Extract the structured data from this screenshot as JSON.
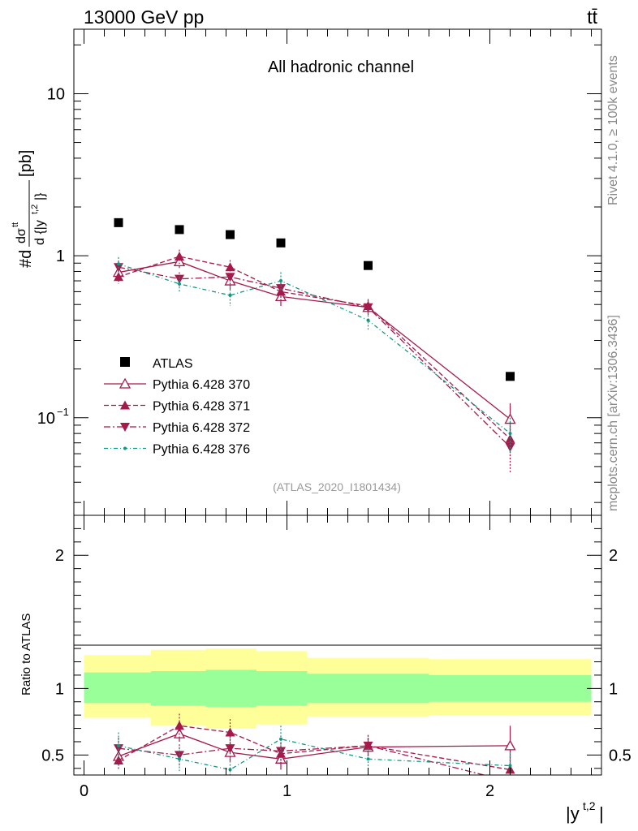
{
  "header": {
    "left": "13000 GeV pp",
    "right": "tt̄"
  },
  "side_text": {
    "rivet": "Rivet 4.1.0, ≥ 100k events",
    "mcplots": "mcplots.cern.ch [arXiv:1306.3436]"
  },
  "colors": {
    "data": "#000000",
    "mc": "#a6194b",
    "teal": "#129686",
    "band_inner": "#99ff99",
    "band_outer": "#ffff99"
  },
  "chart_data": {
    "type": "line",
    "title": "All hadronic channel",
    "watermark": "(ATLAS_2020_I1801434)",
    "xlabel": "|y^{t,2}|",
    "ylabel": "#d dσ^{tt}/d{|y^{t,2}|} [pb]",
    "ylabel_ratio": "Ratio to ATLAS",
    "xlim": [
      -0.05,
      2.55
    ],
    "ylim_main": [
      0.025,
      25
    ],
    "ylim_ratio": [
      0.35,
      2.3
    ],
    "x_ticks": [
      {
        "v": 0,
        "label": "0"
      },
      {
        "v": 1,
        "label": "1"
      },
      {
        "v": 2,
        "label": "2"
      }
    ],
    "y_ticks_main": [
      {
        "v": 0.1,
        "base": "10",
        "exp": "−1"
      },
      {
        "v": 1,
        "base": "1",
        "exp": ""
      },
      {
        "v": 10,
        "base": "10",
        "exp": ""
      }
    ],
    "y_ticks_ratio": [
      {
        "v": 0.5,
        "label": "0.5"
      },
      {
        "v": 1,
        "label": "1"
      },
      {
        "v": 2,
        "label": "2"
      }
    ],
    "bins": [
      [
        0.0,
        0.33
      ],
      [
        0.33,
        0.6
      ],
      [
        0.6,
        0.85
      ],
      [
        0.85,
        1.1
      ],
      [
        1.1,
        1.7
      ],
      [
        1.7,
        2.5
      ]
    ],
    "x": [
      0.17,
      0.47,
      0.72,
      0.97,
      1.4,
      2.1
    ],
    "data": {
      "name": "ATLAS",
      "values": [
        1.6,
        1.45,
        1.35,
        1.2,
        0.87,
        0.18
      ],
      "band_inner": [
        [
          0.89,
          1.12
        ],
        [
          0.87,
          1.13
        ],
        [
          0.86,
          1.14
        ],
        [
          0.87,
          1.13
        ],
        [
          0.89,
          1.11
        ],
        [
          0.9,
          1.1
        ]
      ],
      "band_outer": [
        [
          0.78,
          1.25
        ],
        [
          0.72,
          1.29
        ],
        [
          0.7,
          1.3
        ],
        [
          0.73,
          1.28
        ],
        [
          0.79,
          1.23
        ],
        [
          0.8,
          1.22
        ]
      ]
    },
    "series": [
      {
        "name": "Pythia 6.428 370",
        "marker": "triangle-open",
        "dash": "",
        "color": "#a6194b",
        "values": [
          0.79,
          0.92,
          0.7,
          0.56,
          0.48,
          0.098
        ],
        "errors": [
          0.08,
          0.08,
          0.08,
          0.07,
          0.04,
          0.025
        ],
        "ratio": [
          0.49,
          0.66,
          0.52,
          0.47,
          0.56,
          0.57
        ],
        "ratio_err": [
          0.07,
          0.06,
          0.07,
          0.08,
          0.07,
          0.15
        ]
      },
      {
        "name": "Pythia 6.428 371",
        "marker": "triangle-up",
        "dash": "6,3",
        "color": "#a6194b",
        "values": [
          0.74,
          0.99,
          0.85,
          0.6,
          0.49,
          0.074
        ],
        "errors": [
          0.07,
          0.1,
          0.09,
          0.08,
          0.05,
          0.02
        ],
        "ratio": [
          0.46,
          0.72,
          0.67,
          0.51,
          0.57,
          0.39
        ],
        "ratio_err": [
          0.07,
          0.09,
          0.1,
          0.08,
          0.08,
          0.1
        ]
      },
      {
        "name": "Pythia 6.428 372",
        "marker": "triangle-down",
        "dash": "8,3,2,3",
        "color": "#a6194b",
        "values": [
          0.85,
          0.72,
          0.74,
          0.63,
          0.48,
          0.066
        ],
        "errors": [
          0.08,
          0.07,
          0.08,
          0.08,
          0.05,
          0.02
        ],
        "ratio": [
          0.55,
          0.5,
          0.55,
          0.53,
          0.57,
          0.3
        ],
        "ratio_err": [
          0.08,
          0.08,
          0.09,
          0.09,
          0.08,
          0.1
        ]
      },
      {
        "name": "Pythia 6.428 376",
        "marker": "dot",
        "dash": "5,3,1,3",
        "color": "#129686",
        "values": [
          0.89,
          0.67,
          0.57,
          0.7,
          0.4,
          0.08
        ],
        "errors": [
          0.09,
          0.07,
          0.08,
          0.09,
          0.05,
          0.02
        ],
        "ratio": [
          0.57,
          0.47,
          0.39,
          0.62,
          0.47,
          0.42
        ],
        "ratio_err": [
          0.1,
          0.09,
          0.09,
          0.1,
          0.08,
          0.1
        ]
      }
    ]
  }
}
